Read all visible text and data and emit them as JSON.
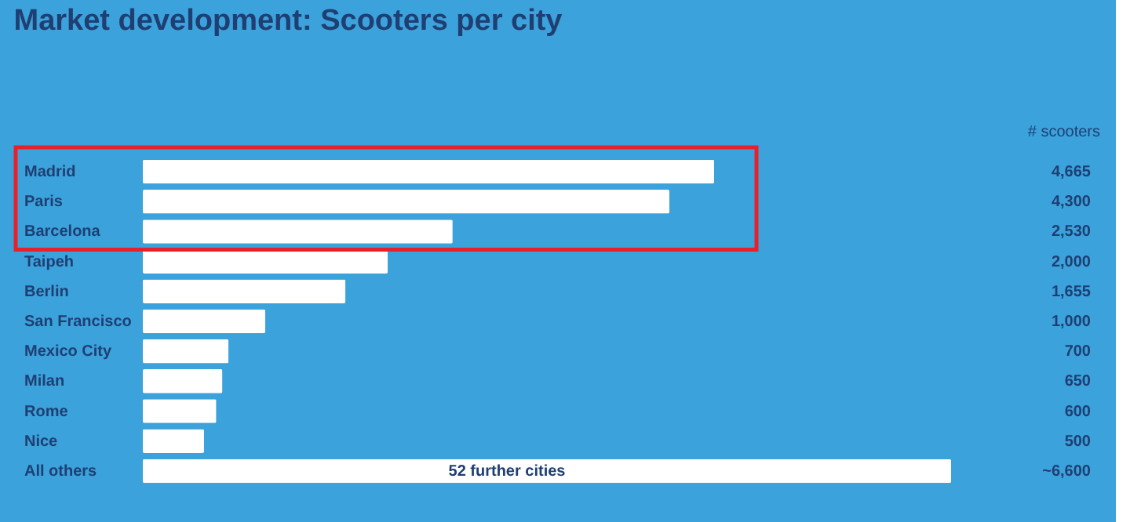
{
  "chart_data": {
    "type": "bar",
    "orientation": "horizontal",
    "title": "Market development: Scooters per city",
    "xlabel": "# scooters",
    "categories": [
      "Madrid",
      "Paris",
      "Barcelona",
      "Taipeh",
      "Berlin",
      "San Francisco",
      "Mexico City",
      "Milan",
      "Rome",
      "Nice",
      "All others"
    ],
    "values": [
      4665,
      4300,
      2530,
      2000,
      1655,
      1000,
      700,
      650,
      600,
      500,
      6600
    ],
    "value_labels": [
      "4,665",
      "4,300",
      "2,530",
      "2,000",
      "1,655",
      "1,000",
      "700",
      "650",
      "600",
      "500",
      "~6,600"
    ],
    "color": "#ffffff",
    "annotations": [
      "52 further cities"
    ]
  }
}
